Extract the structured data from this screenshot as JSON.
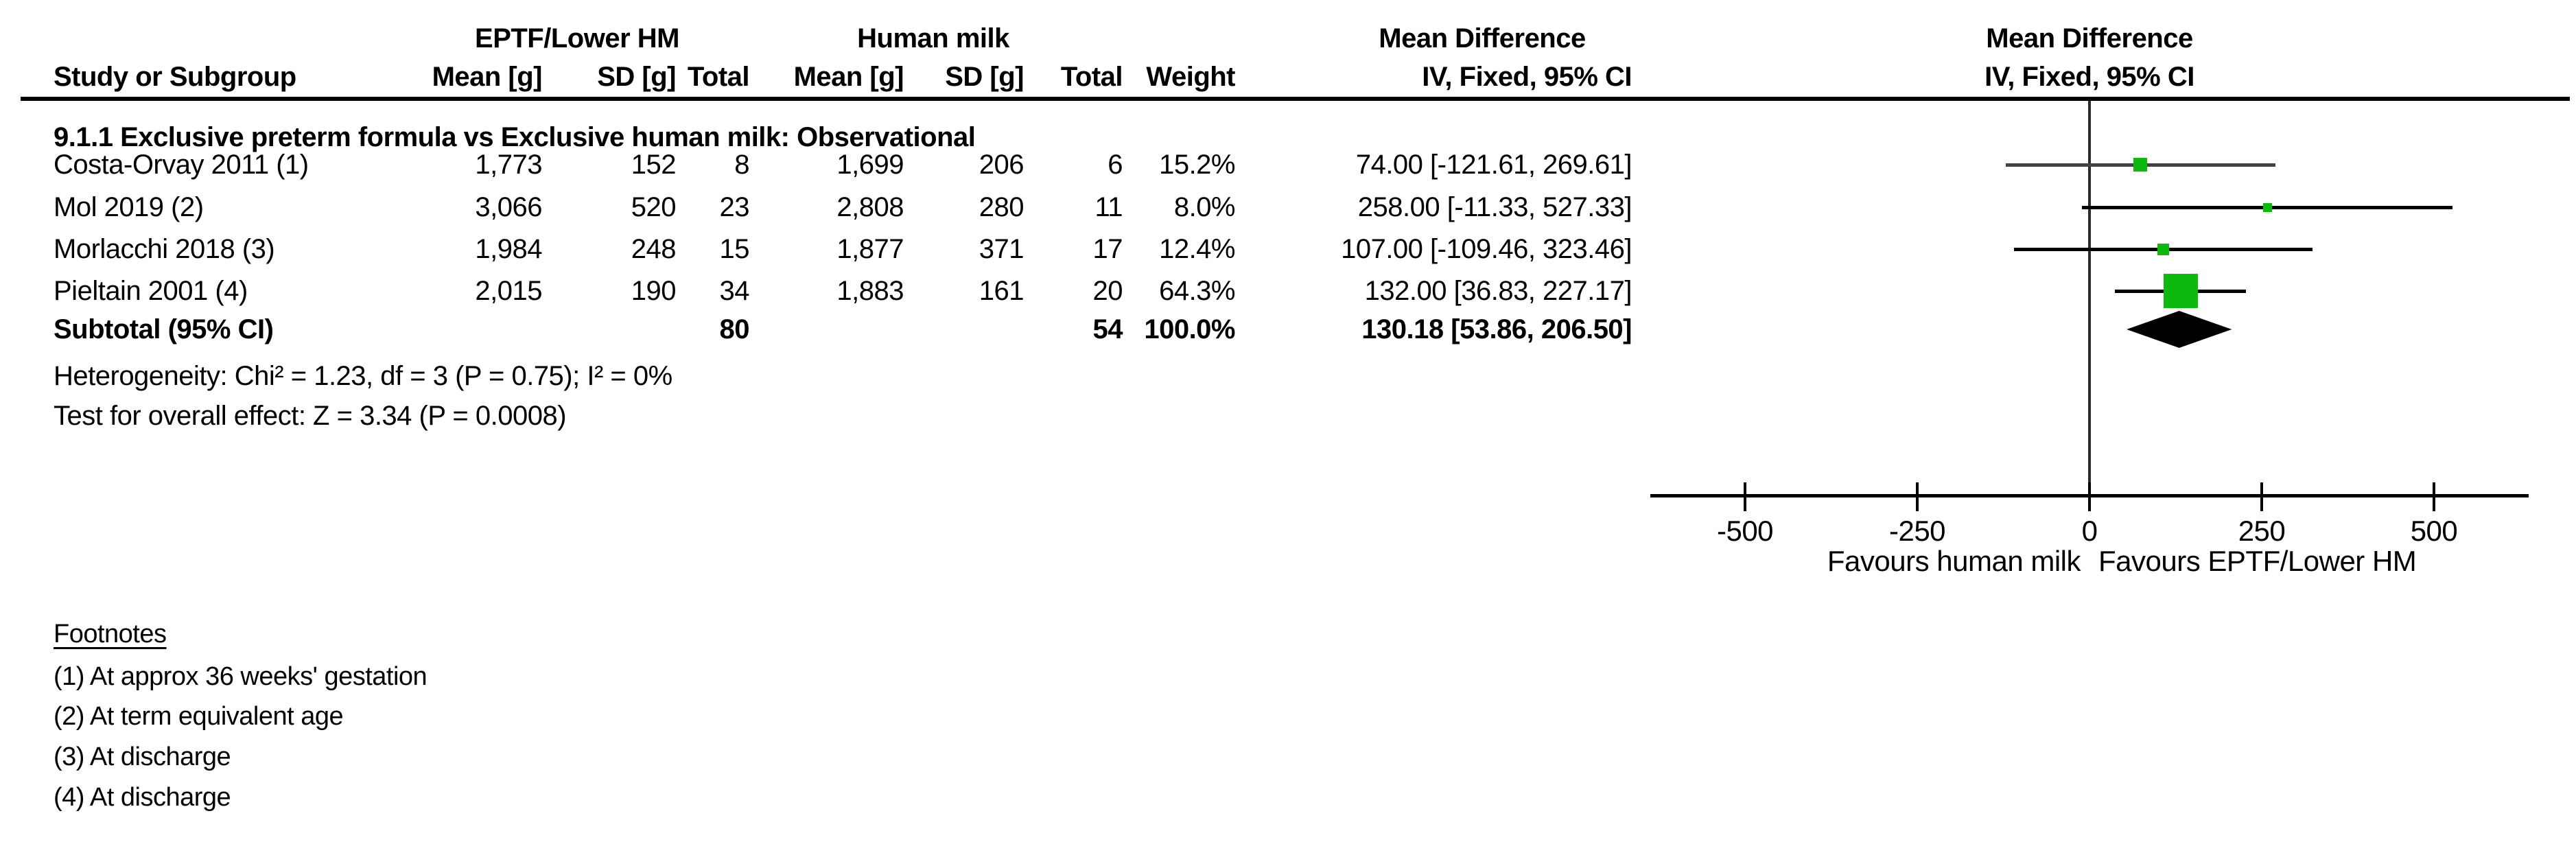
{
  "figure": {
    "group1_header": "EPTF/Lower HM",
    "group2_header": "Human milk",
    "effect_header": "Mean Difference",
    "col_headers": {
      "study": "Study or Subgroup",
      "mean": "Mean [g]",
      "sd": "SD [g]",
      "total": "Total",
      "weight": "Weight",
      "ci": "IV, Fixed, 95% CI"
    },
    "heterogeneity": "Heterogeneity: Chi² = 1.23, df = 3 (P = 0.75); I² = 0%",
    "overall_effect": "Test for overall effect: Z = 3.34 (P = 0.0008)",
    "footnotes_title": "Footnotes",
    "footnotes": [
      "(1) At approx 36 weeks' gestation",
      "(2) At term equivalent age",
      "(3) At discharge",
      "(4) At discharge"
    ]
  },
  "chart_data": {
    "type": "forest",
    "title": "Mean Difference",
    "method": "IV, Fixed, 95% CI",
    "subgroup": "9.1.1 Exclusive preterm formula vs Exclusive human milk: Observational",
    "comparison": {
      "experimental": "EPTF/Lower HM",
      "control": "Human milk"
    },
    "x_axis": {
      "ticks": [
        -500,
        -250,
        0,
        250,
        500
      ],
      "min": -640,
      "max": 640,
      "label_left": "Favours human milk",
      "label_right": "Favours EPTF/Lower HM"
    },
    "studies": [
      {
        "name": "Costa-Orvay 2011 (1)",
        "mean1": "1,773",
        "sd1": "152",
        "total1": "8",
        "mean2": "1,699",
        "sd2": "206",
        "total2": "6",
        "weight": "15.2%",
        "md": 74.0,
        "ci_low": -121.61,
        "ci_high": 269.61,
        "ci_text": "74.00 [-121.61, 269.61]",
        "marker_px": 20,
        "line_color": "#424242"
      },
      {
        "name": "Mol 2019 (2)",
        "mean1": "3,066",
        "sd1": "520",
        "total1": "23",
        "mean2": "2,808",
        "sd2": "280",
        "total2": "11",
        "weight": "8.0%",
        "md": 258.0,
        "ci_low": -11.33,
        "ci_high": 527.33,
        "ci_text": "258.00 [-11.33, 527.33]",
        "marker_px": 13,
        "line_color": "#000000"
      },
      {
        "name": "Morlacchi 2018 (3)",
        "mean1": "1,984",
        "sd1": "248",
        "total1": "15",
        "mean2": "1,877",
        "sd2": "371",
        "total2": "17",
        "weight": "12.4%",
        "md": 107.0,
        "ci_low": -109.46,
        "ci_high": 323.46,
        "ci_text": "107.00 [-109.46, 323.46]",
        "marker_px": 17,
        "line_color": "#000000"
      },
      {
        "name": "Pieltain 2001 (4)",
        "mean1": "2,015",
        "sd1": "190",
        "total1": "34",
        "mean2": "1,883",
        "sd2": "161",
        "total2": "20",
        "weight": "64.3%",
        "md": 132.0,
        "ci_low": 36.83,
        "ci_high": 227.17,
        "ci_text": "132.00 [36.83, 227.17]",
        "marker_px": 50,
        "line_color": "#000000"
      }
    ],
    "subtotal": {
      "label": "Subtotal (95% CI)",
      "total1": "80",
      "total2": "54",
      "weight": "100.0%",
      "md": 130.18,
      "ci_low": 53.86,
      "ci_high": 206.5,
      "ci_text": "130.18 [53.86, 206.50]"
    },
    "colors": {
      "marker": "#0fb80f",
      "diamond": "#000000",
      "axis": "#000000",
      "zero_line": "#2b2b2b"
    }
  }
}
